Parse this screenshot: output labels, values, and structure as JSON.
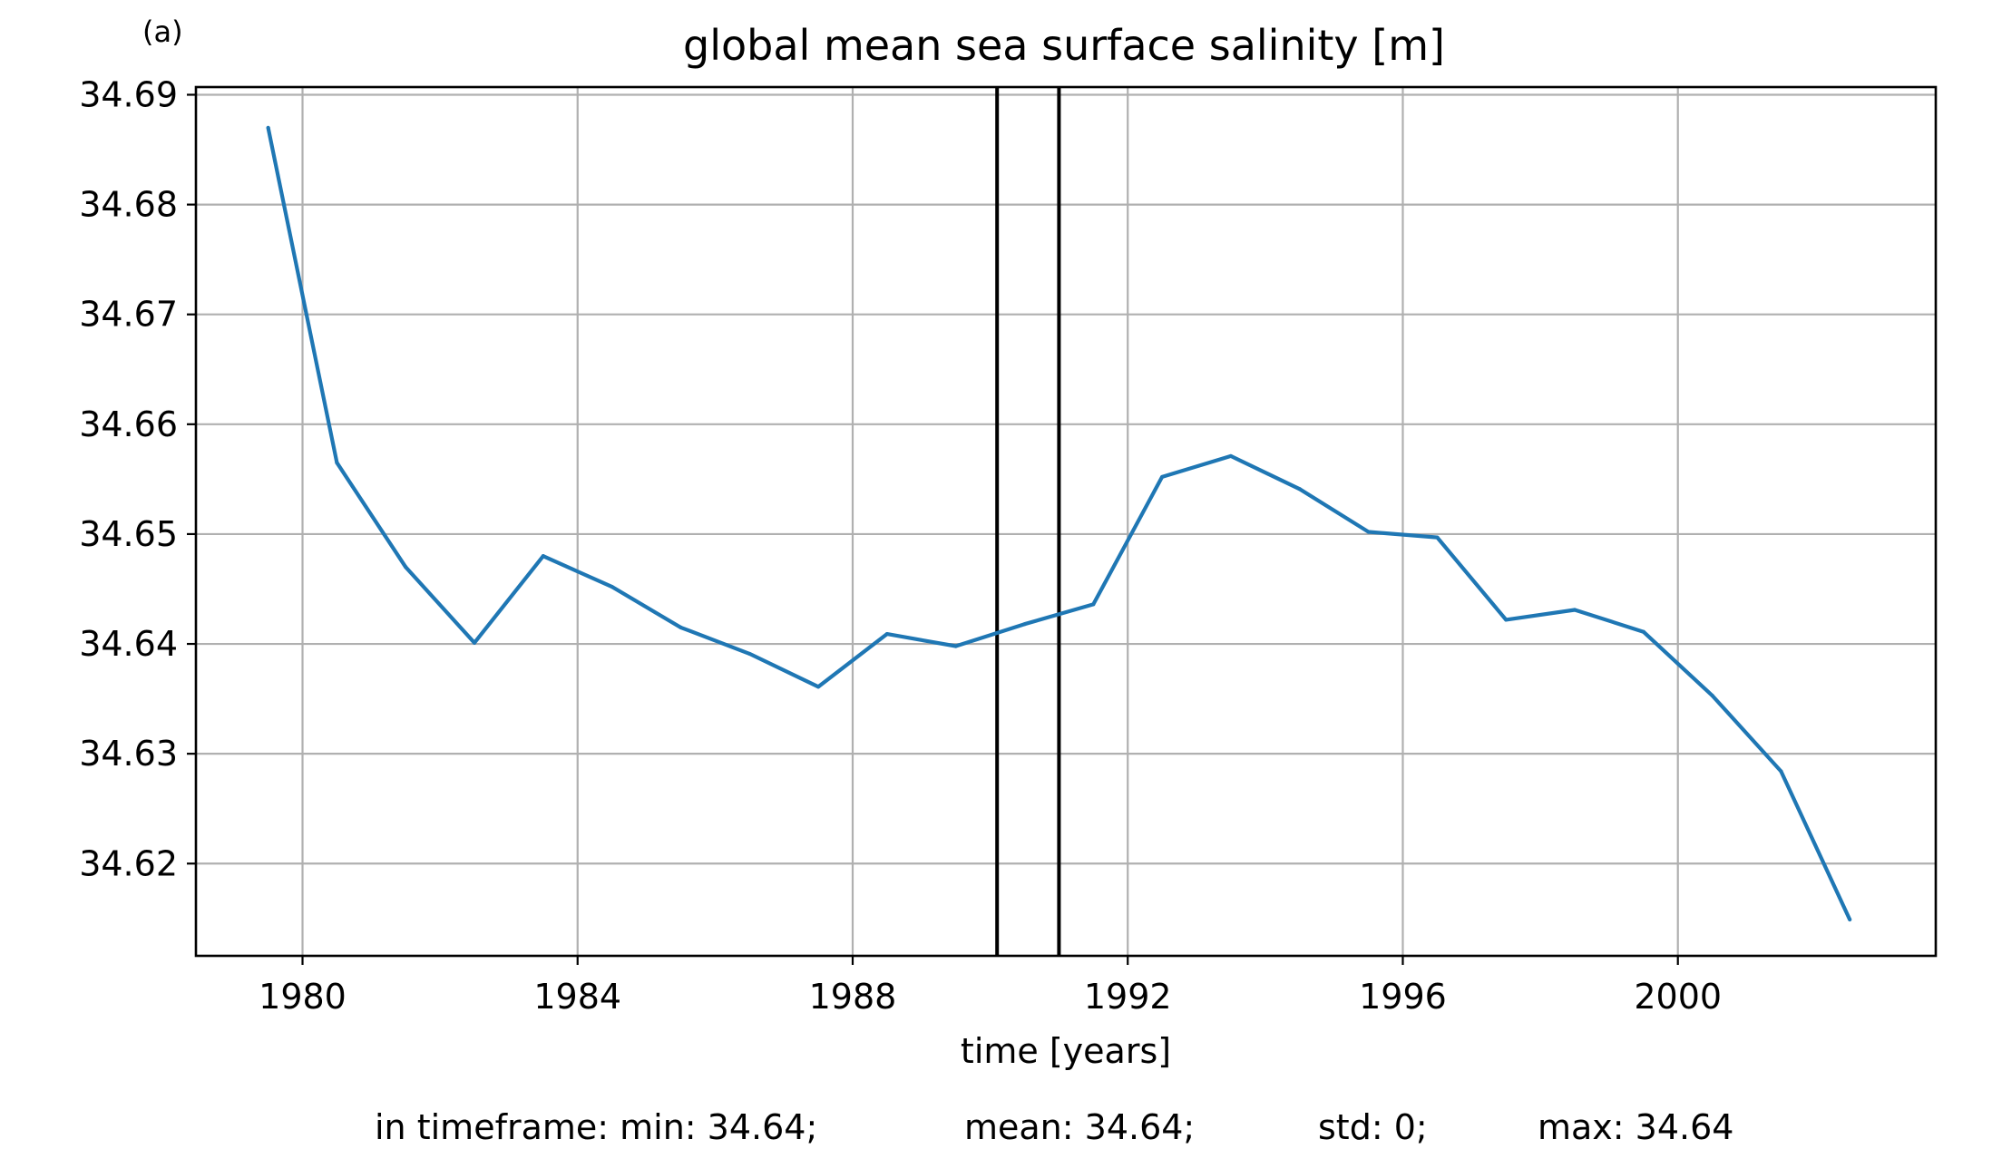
{
  "panel_label": "(a)",
  "footer": {
    "min": "in timeframe: min: 34.64;",
    "mean": "mean: 34.64;",
    "std": "std: 0;",
    "max": "max: 34.64"
  },
  "chart_data": {
    "type": "line",
    "title": "global mean sea surface salinity [m]",
    "xlabel": "time [years]",
    "ylabel": "",
    "xlim": [
      1978.45,
      2003.75
    ],
    "ylim": [
      34.6116,
      34.6907
    ],
    "x_ticks": [
      1980,
      1984,
      1988,
      1992,
      1996,
      2000
    ],
    "y_ticks": [
      34.62,
      34.63,
      34.64,
      34.65,
      34.66,
      34.67,
      34.68,
      34.69
    ],
    "y_tick_labels": [
      "34.62",
      "34.63",
      "34.64",
      "34.65",
      "34.66",
      "34.67",
      "34.68",
      "34.69"
    ],
    "grid": true,
    "vertical_lines": [
      1990.1,
      1991.0
    ],
    "line_color": "#1f77b4",
    "series": [
      {
        "x": [
          1979.5,
          1980.5,
          1981.5,
          1982.5,
          1983.5,
          1984.5,
          1985.5,
          1986.5,
          1987.5,
          1988.5,
          1989.5,
          1990.5,
          1991.5,
          1992.5,
          1993.5,
          1994.5,
          1995.5,
          1996.5,
          1997.5,
          1998.5,
          1999.5,
          2000.5,
          2001.5,
          2002.5
        ],
        "values": [
          34.687,
          34.6565,
          34.647,
          34.6401,
          34.648,
          34.6452,
          34.6415,
          34.6391,
          34.6361,
          34.6409,
          34.6398,
          34.6418,
          34.6436,
          34.6552,
          34.6571,
          34.6541,
          34.6502,
          34.6497,
          34.6422,
          34.6431,
          34.6411,
          34.6353,
          34.6284,
          34.6149
        ]
      }
    ]
  }
}
